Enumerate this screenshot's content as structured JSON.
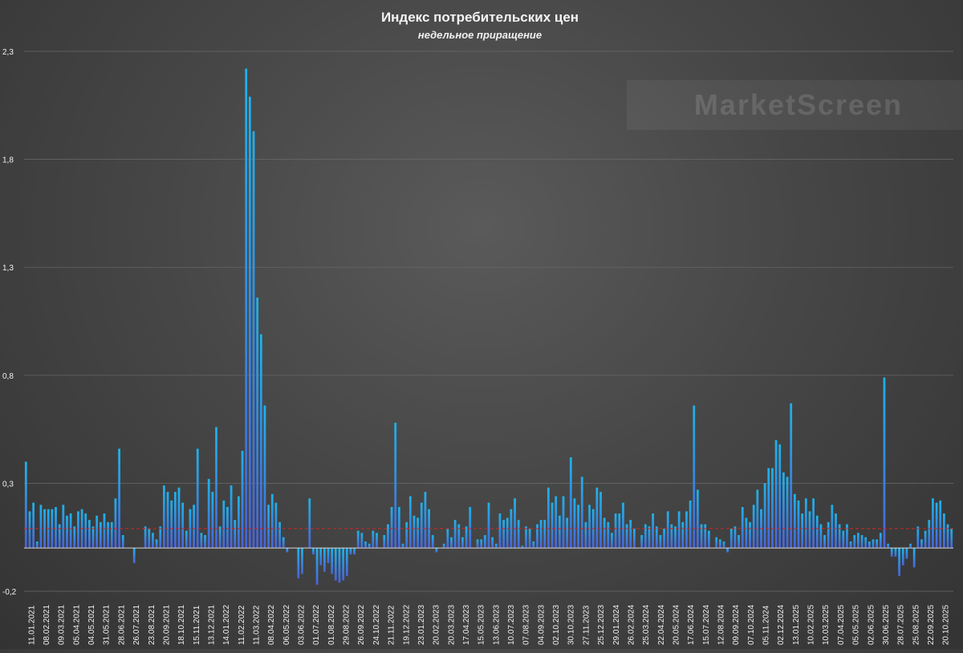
{
  "chart_data": {
    "type": "bar",
    "title": "Индекс потребительских цен",
    "subtitle": "недельное приращение",
    "watermark": "MarketScreen",
    "ylim": [
      -0.2,
      2.3
    ],
    "y_ticks": [
      "-0,2",
      "0,3",
      "0,8",
      "1,3",
      "1,8",
      "2,3"
    ],
    "y_tick_values": [
      -0.2,
      0.3,
      0.8,
      1.3,
      1.8,
      2.3
    ],
    "reference_line": 0.09,
    "colors": {
      "bar_top": "#1fb2ea",
      "bar_bottom": "#4a63d3",
      "reference_line": "#c62828",
      "grid": "#6b6b6b",
      "text": "#f2f2f2"
    },
    "x_labels": [
      "11.01.2021",
      "08.02.2021",
      "09.03.2021",
      "05.04.2021",
      "04.05.2021",
      "31.05.2021",
      "28.06.2021",
      "26.07.2021",
      "23.08.2021",
      "20.09.2021",
      "18.10.2021",
      "15.11.2021",
      "13.12.2021",
      "14.01.2022",
      "11.02.2022",
      "11.03.2022",
      "08.04.2022",
      "06.05.2022",
      "03.06.2022",
      "01.07.2022",
      "01.08.2022",
      "29.08.2022",
      "26.09.2022",
      "24.10.2022",
      "21.11.2022",
      "19.12.2022",
      "23.01.2023",
      "20.02.2023",
      "20.03.2023",
      "17.04.2023",
      "15.05.2023",
      "13.06.2023",
      "10.07.2023",
      "07.08.2023",
      "04.09.2023",
      "02.10.2023",
      "30.10.2023",
      "27.11.2023",
      "25.12.2023",
      "29.01.2024",
      "26.02.2024",
      "25.03.2024",
      "22.04.2024",
      "20.05.2024",
      "17.06.2024",
      "15.07.2024",
      "12.08.2024",
      "09.09.2024",
      "07.10.2024",
      "05.11.2024",
      "02.12.2024",
      "13.01.2025",
      "10.02.2025",
      "10.03.2025",
      "07.04.2025",
      "05.05.2025",
      "02.06.2025",
      "30.06.2025",
      "28.07.2025",
      "25.08.2025",
      "22.09.2025",
      "20.10.2025"
    ],
    "values": [
      0.4,
      0.17,
      0.21,
      0.03,
      0.2,
      0.18,
      0.18,
      0.18,
      0.19,
      0.11,
      0.2,
      0.15,
      0.16,
      0.1,
      0.17,
      0.18,
      0.16,
      0.13,
      0.1,
      0.15,
      0.12,
      0.16,
      0.12,
      0.12,
      0.23,
      0.46,
      0.06,
      0.0,
      0.0,
      -0.07,
      0.0,
      0.0,
      0.1,
      0.09,
      0.07,
      0.04,
      0.1,
      0.29,
      0.26,
      0.22,
      0.26,
      0.28,
      0.21,
      0.08,
      0.18,
      0.2,
      0.46,
      0.07,
      0.06,
      0.32,
      0.26,
      0.56,
      0.1,
      0.22,
      0.19,
      0.29,
      0.13,
      0.24,
      0.45,
      2.22,
      2.09,
      1.93,
      1.16,
      0.99,
      0.66,
      0.2,
      0.25,
      0.21,
      0.12,
      0.05,
      -0.02,
      0.0,
      0.0,
      -0.14,
      -0.12,
      0.0,
      0.23,
      -0.03,
      -0.17,
      -0.08,
      -0.11,
      -0.07,
      -0.12,
      -0.15,
      -0.16,
      -0.15,
      -0.13,
      -0.03,
      -0.03,
      0.08,
      0.07,
      0.03,
      0.02,
      0.08,
      0.07,
      0.0,
      0.06,
      0.11,
      0.19,
      0.58,
      0.19,
      0.02,
      0.12,
      0.24,
      0.15,
      0.14,
      0.21,
      0.26,
      0.18,
      0.06,
      -0.02,
      0.0,
      0.02,
      0.09,
      0.05,
      0.13,
      0.11,
      0.05,
      0.1,
      0.19,
      0.0,
      0.04,
      0.04,
      0.06,
      0.21,
      0.05,
      0.02,
      0.16,
      0.13,
      0.14,
      0.18,
      0.23,
      0.13,
      0.01,
      0.1,
      0.09,
      0.03,
      0.11,
      0.13,
      0.13,
      0.28,
      0.21,
      0.24,
      0.15,
      0.24,
      0.14,
      0.42,
      0.23,
      0.2,
      0.33,
      0.12,
      0.2,
      0.18,
      0.28,
      0.26,
      0.14,
      0.12,
      0.07,
      0.16,
      0.16,
      0.21,
      0.11,
      0.13,
      0.09,
      0.0,
      0.06,
      0.11,
      0.1,
      0.16,
      0.1,
      0.06,
      0.09,
      0.17,
      0.11,
      0.1,
      0.17,
      0.12,
      0.17,
      0.22,
      0.66,
      0.27,
      0.11,
      0.11,
      0.08,
      0.0,
      0.05,
      0.04,
      0.03,
      -0.02,
      0.09,
      0.1,
      0.06,
      0.19,
      0.14,
      0.12,
      0.2,
      0.27,
      0.18,
      0.3,
      0.37,
      0.37,
      0.5,
      0.48,
      0.35,
      0.33,
      0.67,
      0.25,
      0.22,
      0.16,
      0.23,
      0.17,
      0.23,
      0.15,
      0.11,
      0.06,
      0.12,
      0.2,
      0.16,
      0.11,
      0.08,
      0.11,
      0.03,
      0.06,
      0.07,
      0.06,
      0.05,
      0.03,
      0.04,
      0.04,
      0.07,
      0.79,
      0.02,
      -0.04,
      -0.04,
      -0.13,
      -0.08,
      -0.05,
      0.02,
      -0.09,
      0.1,
      0.04,
      0.08,
      0.13,
      0.23,
      0.21,
      0.22,
      0.16,
      0.11,
      0.09
    ]
  }
}
